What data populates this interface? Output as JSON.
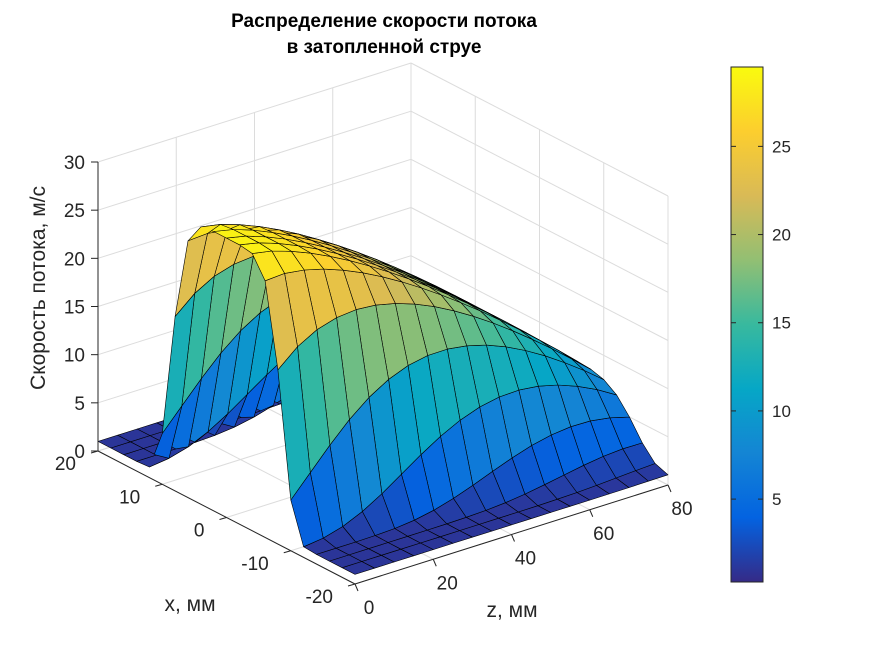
{
  "chart_data": {
    "type": "surface",
    "title_line1": "Распределение скорости потока",
    "title_line2": "в затопленной струе",
    "xlabel": "x, мм",
    "zlabel": "z, мм",
    "ylabel": "Скорость потока, м/с",
    "xlim": [
      -20,
      20
    ],
    "zlim": [
      0,
      80
    ],
    "vlim": [
      0,
      30
    ],
    "x_ticks": [
      -20,
      -10,
      0,
      10,
      20
    ],
    "x_tick_labels": [
      "-20",
      "-10",
      "0",
      "10",
      "20"
    ],
    "z_ticks": [
      0,
      20,
      40,
      60,
      80
    ],
    "z_tick_labels": [
      "0",
      "20",
      "40",
      "60",
      "80"
    ],
    "v_ticks": [
      0,
      5,
      10,
      15,
      20,
      25,
      30
    ],
    "v_tick_labels": [
      "0",
      "5",
      "10",
      "15",
      "20",
      "25",
      "30"
    ],
    "colorbar": {
      "range": [
        0.3,
        29.5
      ],
      "ticks": [
        5,
        10,
        15,
        20,
        25
      ],
      "tick_labels": [
        "5",
        "10",
        "15",
        "20",
        "25"
      ],
      "colormap": "parula"
    },
    "x_samples": [
      -20,
      -18,
      -16,
      -14,
      -12,
      -10,
      -8,
      -6,
      -4,
      -2,
      0,
      2,
      4,
      6,
      8,
      10,
      12,
      14,
      16,
      18,
      20
    ],
    "z_samples": [
      0,
      5,
      10,
      15,
      20,
      25,
      30,
      35,
      40,
      45,
      50,
      55,
      60,
      65,
      70,
      75,
      80
    ],
    "profile_description_values": {
      "core_velocity_at_nozzle": 29,
      "core_velocity_at_80mm": 8,
      "background_velocity": 1
    }
  }
}
